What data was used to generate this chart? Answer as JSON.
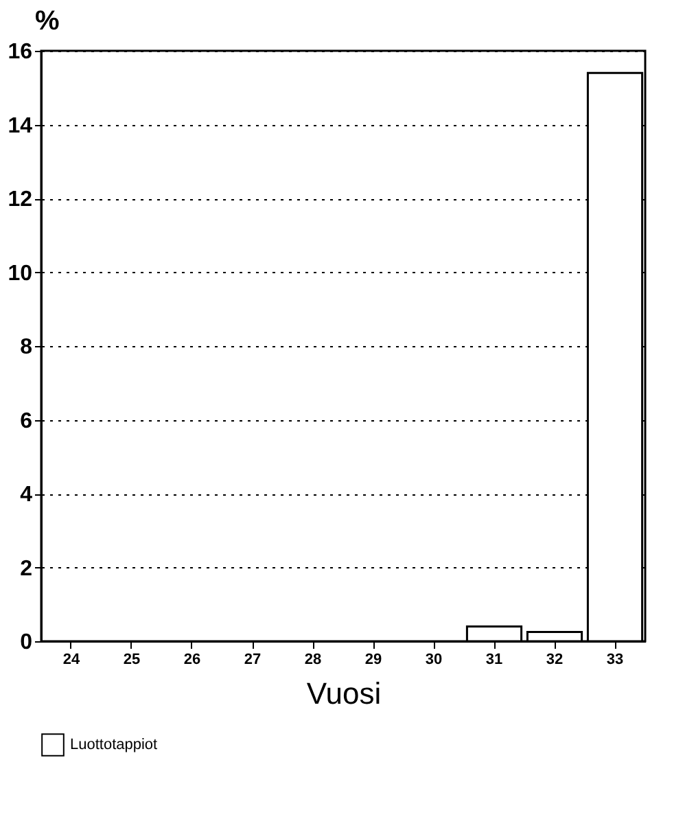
{
  "chart_data": {
    "type": "bar",
    "ylabel": "%",
    "xlabel": "Vuosi",
    "categories": [
      "24",
      "25",
      "26",
      "27",
      "28",
      "29",
      "30",
      "31",
      "32",
      "33"
    ],
    "series": [
      {
        "name": "Luottotappiot",
        "color": "#ffffff",
        "values": [
          null,
          null,
          null,
          null,
          null,
          null,
          null,
          0.4,
          0.25,
          15.4
        ]
      }
    ],
    "ylim": [
      0,
      16
    ],
    "yticks": [
      0,
      2,
      4,
      6,
      8,
      10,
      12,
      14,
      16
    ],
    "grid": "y",
    "legend": "bottom"
  }
}
